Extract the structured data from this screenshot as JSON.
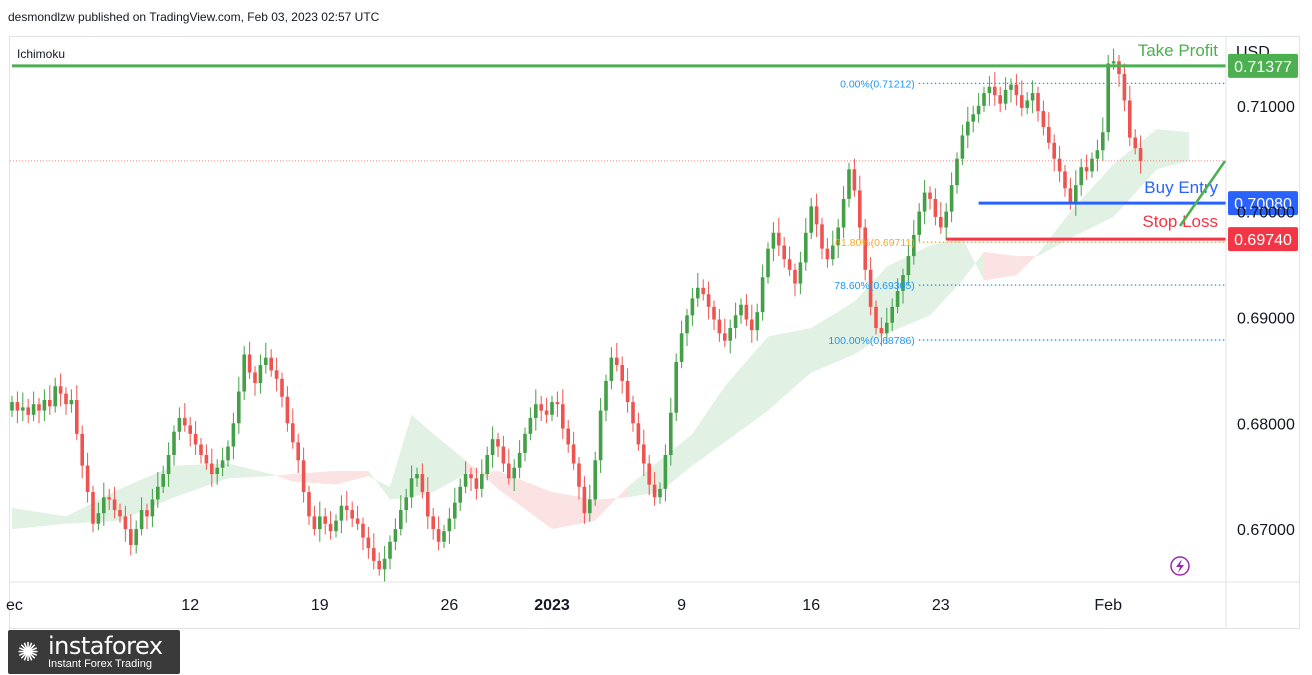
{
  "header": {
    "text": "desmondlzw published on TradingView.com, Feb 03, 2023 02:57 UTC"
  },
  "indicator": {
    "name": "Ichimoku"
  },
  "axis": {
    "currency": "USD"
  },
  "watermark": {
    "brand": "instaforex",
    "tagline": "Instant Forex Trading"
  },
  "colors": {
    "up": "#43a047",
    "down": "#ef5350",
    "take_profit": "#4caf50",
    "buy_entry": "#2962ff",
    "stop_loss": "#f23645",
    "fib": "#2196f3",
    "cloud_green": "#d7ecd9",
    "cloud_red": "#fbd9d9"
  },
  "chart_data": {
    "type": "candlestick",
    "pair_quote_currency": "USD",
    "ylim": [
      0.665,
      0.7165
    ],
    "y_ticks": [
      "0.71000",
      "0.70000",
      "0.69000",
      "0.68000",
      "0.67000"
    ],
    "y_tick_values": [
      0.71,
      0.7,
      0.69,
      0.68,
      0.67
    ],
    "x_ticks": [
      {
        "label": "ec",
        "index": 0
      },
      {
        "label": "12",
        "index": 33
      },
      {
        "label": "19",
        "index": 57
      },
      {
        "label": "26",
        "index": 81
      },
      {
        "label": "2023",
        "index": 100
      },
      {
        "label": "9",
        "index": 124
      },
      {
        "label": "16",
        "index": 148
      },
      {
        "label": "23",
        "index": 172
      },
      {
        "label": "Feb",
        "index": 203
      }
    ],
    "levels": [
      {
        "name": "Take Profit",
        "value": 0.71377,
        "label": "0.71377",
        "color": "#4caf50",
        "start_index": 0
      },
      {
        "name": "Buy Entry",
        "value": 0.7008,
        "label": "0.70080",
        "color": "#2962ff",
        "start_index": 179
      },
      {
        "name": "Stop Loss",
        "value": 0.6974,
        "label": "0.69740",
        "color": "#f23645",
        "start_index": 173
      }
    ],
    "fibonacci": [
      {
        "label": "0.00%(0.71212)",
        "value": 0.71212,
        "color": "#2196f3"
      },
      {
        "label": "61.80%(0.69711)",
        "value": 0.69711,
        "color": "#f9a825"
      },
      {
        "label": "78.60%(0.69305)",
        "value": 0.69305,
        "color": "#2196f3"
      },
      {
        "label": "100.00%(0.68786)",
        "value": 0.68786,
        "color": "#2196f3"
      }
    ],
    "fib_start_index": 162,
    "last_price": 0.7048,
    "closes": [
      0.682,
      0.6812,
      0.6815,
      0.6808,
      0.6818,
      0.6812,
      0.6822,
      0.6816,
      0.6835,
      0.6828,
      0.6818,
      0.6822,
      0.679,
      0.676,
      0.6735,
      0.6705,
      0.6715,
      0.673,
      0.6728,
      0.6718,
      0.6712,
      0.67,
      0.6685,
      0.67,
      0.6718,
      0.6712,
      0.6728,
      0.674,
      0.6752,
      0.677,
      0.6792,
      0.6805,
      0.6798,
      0.679,
      0.678,
      0.677,
      0.6762,
      0.6752,
      0.6758,
      0.6765,
      0.6778,
      0.68,
      0.683,
      0.6865,
      0.6848,
      0.6838,
      0.6855,
      0.6862,
      0.685,
      0.6842,
      0.6825,
      0.68,
      0.6782,
      0.6765,
      0.6735,
      0.6712,
      0.67,
      0.6712,
      0.6705,
      0.6698,
      0.6708,
      0.6722,
      0.6718,
      0.671,
      0.6705,
      0.6692,
      0.6682,
      0.667,
      0.6662,
      0.6672,
      0.6688,
      0.67,
      0.6718,
      0.673,
      0.6748,
      0.6752,
      0.6735,
      0.6712,
      0.67,
      0.6688,
      0.6698,
      0.671,
      0.6725,
      0.674,
      0.6752,
      0.6748,
      0.6738,
      0.6752,
      0.677,
      0.6785,
      0.6778,
      0.6762,
      0.6748,
      0.6758,
      0.6772,
      0.679,
      0.6805,
      0.6818,
      0.6812,
      0.6808,
      0.682,
      0.6818,
      0.6795,
      0.678,
      0.6762,
      0.674,
      0.6715,
      0.6728,
      0.6765,
      0.6812,
      0.684,
      0.6862,
      0.6855,
      0.684,
      0.682,
      0.68,
      0.678,
      0.6762,
      0.6742,
      0.673,
      0.6738,
      0.677,
      0.681,
      0.6858,
      0.6885,
      0.6902,
      0.6918,
      0.6928,
      0.6922,
      0.691,
      0.6898,
      0.6885,
      0.6878,
      0.689,
      0.6902,
      0.6912,
      0.6898,
      0.6888,
      0.6905,
      0.6938,
      0.6965,
      0.698,
      0.6968,
      0.6955,
      0.6945,
      0.6932,
      0.6952,
      0.698,
      0.7005,
      0.6988,
      0.6965,
      0.6955,
      0.6968,
      0.6985,
      0.7012,
      0.704,
      0.702,
      0.6985,
      0.6945,
      0.691,
      0.689,
      0.6885,
      0.6895,
      0.691,
      0.6925,
      0.694,
      0.6958,
      0.6978,
      0.7,
      0.7018,
      0.7012,
      0.6995,
      0.6985,
      0.7,
      0.7025,
      0.705,
      0.7072,
      0.7085,
      0.7092,
      0.71,
      0.7112,
      0.7118,
      0.711,
      0.7102,
      0.7115,
      0.712,
      0.711,
      0.7098,
      0.7105,
      0.7112,
      0.7095,
      0.708,
      0.7065,
      0.705,
      0.7038,
      0.7022,
      0.7008,
      0.7025,
      0.7042,
      0.7038,
      0.705,
      0.7058,
      0.7075,
      0.714,
      0.7142,
      0.713,
      0.7105,
      0.707,
      0.706,
      0.7048
    ],
    "cloud": [
      {
        "i": 0,
        "a": 0.672,
        "b": 0.67
      },
      {
        "i": 10,
        "a": 0.6712,
        "b": 0.6705
      },
      {
        "i": 20,
        "a": 0.6738,
        "b": 0.6708
      },
      {
        "i": 30,
        "a": 0.676,
        "b": 0.673
      },
      {
        "i": 40,
        "a": 0.6762,
        "b": 0.6748
      },
      {
        "i": 48,
        "a": 0.6752,
        "b": 0.675
      },
      {
        "i": 52,
        "a": 0.6745,
        "b": 0.6752
      },
      {
        "i": 60,
        "a": 0.6742,
        "b": 0.6755
      },
      {
        "i": 66,
        "a": 0.675,
        "b": 0.6755
      },
      {
        "i": 70,
        "a": 0.674,
        "b": 0.6728
      },
      {
        "i": 74,
        "a": 0.6808,
        "b": 0.673
      },
      {
        "i": 78,
        "a": 0.679,
        "b": 0.6735
      },
      {
        "i": 84,
        "a": 0.6765,
        "b": 0.6752
      },
      {
        "i": 90,
        "a": 0.6738,
        "b": 0.6755
      },
      {
        "i": 100,
        "a": 0.67,
        "b": 0.6735
      },
      {
        "i": 108,
        "a": 0.6708,
        "b": 0.6728
      },
      {
        "i": 114,
        "a": 0.674,
        "b": 0.673
      },
      {
        "i": 120,
        "a": 0.6765,
        "b": 0.6735
      },
      {
        "i": 126,
        "a": 0.679,
        "b": 0.676
      },
      {
        "i": 132,
        "a": 0.6835,
        "b": 0.6782
      },
      {
        "i": 140,
        "a": 0.6882,
        "b": 0.6812
      },
      {
        "i": 148,
        "a": 0.689,
        "b": 0.6848
      },
      {
        "i": 156,
        "a": 0.6915,
        "b": 0.6865
      },
      {
        "i": 162,
        "a": 0.6948,
        "b": 0.6885
      },
      {
        "i": 170,
        "a": 0.6968,
        "b": 0.6902
      },
      {
        "i": 176,
        "a": 0.6975,
        "b": 0.6935
      },
      {
        "i": 180,
        "a": 0.6935,
        "b": 0.6962
      },
      {
        "i": 186,
        "a": 0.694,
        "b": 0.6958
      },
      {
        "i": 190,
        "a": 0.696,
        "b": 0.6958
      },
      {
        "i": 196,
        "a": 0.7,
        "b": 0.6975
      },
      {
        "i": 204,
        "a": 0.7045,
        "b": 0.6995
      },
      {
        "i": 212,
        "a": 0.7078,
        "b": 0.704
      },
      {
        "i": 218,
        "a": 0.7075,
        "b": 0.7048
      }
    ]
  }
}
